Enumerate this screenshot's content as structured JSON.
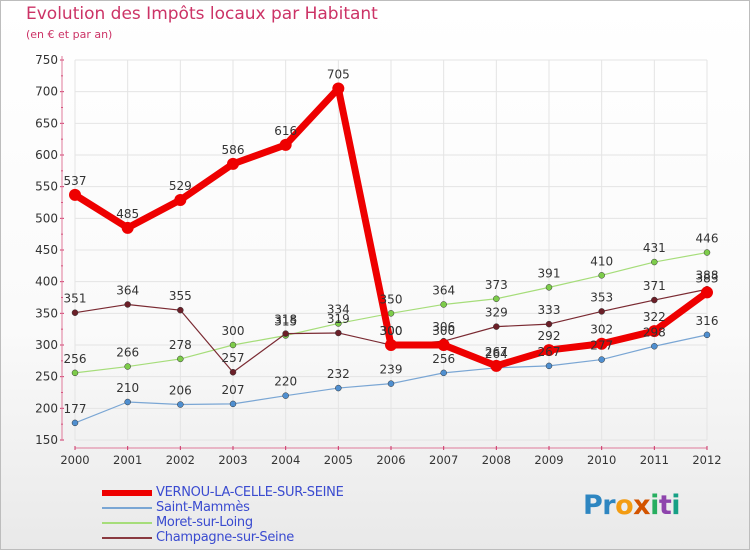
{
  "chart_data": {
    "type": "line",
    "title": "Evolution des Impôts locaux par Habitant",
    "subtitle": "(en € et par an)",
    "xlabel": "",
    "ylabel": "",
    "ylim": [
      150,
      750
    ],
    "yticks": [
      150,
      200,
      250,
      300,
      350,
      400,
      450,
      500,
      550,
      600,
      650,
      700,
      750
    ],
    "x": [
      "2000",
      "2001",
      "2002",
      "2003",
      "2004",
      "2005",
      "2006",
      "2007",
      "2008",
      "2009",
      "2010",
      "2011",
      "2012"
    ],
    "series": [
      {
        "name": "VERNOU-LA-CELLE-SUR-SEINE",
        "color": "#ee0000",
        "values": [
          537,
          485,
          529,
          586,
          616,
          705,
          300,
          300,
          267,
          292,
          302,
          322,
          383
        ]
      },
      {
        "name": "Saint-Mammès",
        "color": "#4f8fd0",
        "values": [
          177,
          210,
          206,
          207,
          220,
          232,
          239,
          256,
          264,
          267,
          277,
          298,
          316
        ]
      },
      {
        "name": "Moret-sur-Loing",
        "color": "#7dcc4a",
        "values": [
          256,
          266,
          278,
          300,
          315,
          334,
          350,
          364,
          373,
          391,
          410,
          431,
          446
        ]
      },
      {
        "name": "Champagne-sur-Seine",
        "color": "#7a2a32",
        "values": [
          351,
          364,
          355,
          257,
          318,
          319,
          300,
          306,
          329,
          333,
          353,
          371,
          388
        ]
      }
    ],
    "data_labels": [
      [
        "537",
        "485",
        "529",
        "586",
        "616",
        "705",
        "300",
        "300",
        "267",
        "292",
        "302",
        "322",
        "383"
      ],
      [
        "177",
        "210",
        "206",
        "207",
        "220",
        "232",
        "239",
        "256",
        "264",
        "267",
        "277",
        "298",
        "316"
      ],
      [
        "256",
        "266",
        "278",
        "300",
        "315",
        "334",
        "350",
        "364",
        "373",
        "391",
        "410",
        "431",
        "446"
      ],
      [
        "351",
        "364",
        "355",
        "257",
        "318",
        "319",
        "300",
        "306",
        "329",
        "333",
        "353",
        "371",
        "388"
      ]
    ],
    "legend_position": "bottom-left"
  },
  "logo": {
    "text": "Proxiti"
  }
}
